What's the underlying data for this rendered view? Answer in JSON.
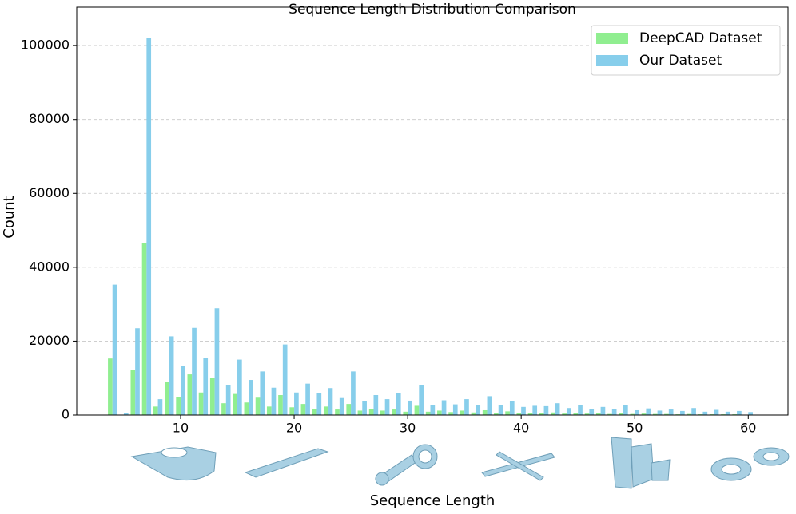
{
  "chart_data": {
    "type": "bar",
    "title": "Sequence Length Distribution Comparison",
    "x_label": "Sequence Length",
    "y_label": "Count",
    "x": [
      4,
      5,
      6,
      7,
      8,
      9,
      10,
      11,
      12,
      13,
      14,
      15,
      16,
      17,
      18,
      19,
      20,
      21,
      22,
      23,
      24,
      25,
      26,
      27,
      28,
      29,
      30,
      31,
      32,
      33,
      34,
      35,
      36,
      37,
      38,
      39,
      40,
      41,
      42,
      43,
      44,
      45,
      46,
      47,
      48,
      49,
      50,
      51,
      52,
      53,
      54,
      55,
      56,
      57,
      58,
      59,
      60
    ],
    "series": [
      {
        "name": "DeepCAD Dataset",
        "color": "#90ee90",
        "values": [
          15300,
          0,
          12200,
          46500,
          2300,
          9000,
          4800,
          11000,
          6100,
          10000,
          3200,
          5700,
          3400,
          4700,
          2300,
          5400,
          2100,
          3000,
          1700,
          2300,
          1500,
          3000,
          1200,
          1700,
          1200,
          1500,
          900,
          2500,
          900,
          1200,
          800,
          1200,
          700,
          1300,
          600,
          1000,
          500,
          600,
          500,
          700,
          400,
          600,
          400,
          500,
          300,
          500,
          300,
          400,
          300,
          300,
          200,
          300,
          200,
          200,
          200,
          200,
          100
        ]
      },
      {
        "name": "Our Dataset",
        "color": "#87ceeb",
        "values": [
          35300,
          600,
          23500,
          102000,
          4300,
          21300,
          13200,
          23600,
          15400,
          28900,
          8100,
          15000,
          9500,
          11800,
          7400,
          19100,
          6100,
          8500,
          6000,
          7300,
          4600,
          11800,
          3700,
          5400,
          4300,
          5900,
          3900,
          8200,
          2700,
          4000,
          2900,
          4300,
          2700,
          5100,
          2600,
          3800,
          2200,
          2500,
          2400,
          3200,
          1900,
          2600,
          1600,
          2200,
          1600,
          2600,
          1300,
          1800,
          1200,
          1500,
          1100,
          1900,
          900,
          1400,
          900,
          1100,
          800
        ]
      }
    ],
    "xlim": [
      0.85,
      63.5
    ],
    "ylim": [
      0,
      110400
    ],
    "xticks": [
      10,
      20,
      30,
      40,
      50,
      60
    ],
    "yticks": [
      0,
      20000,
      40000,
      60000,
      80000,
      100000
    ],
    "grid": true,
    "legend": "upper right"
  }
}
